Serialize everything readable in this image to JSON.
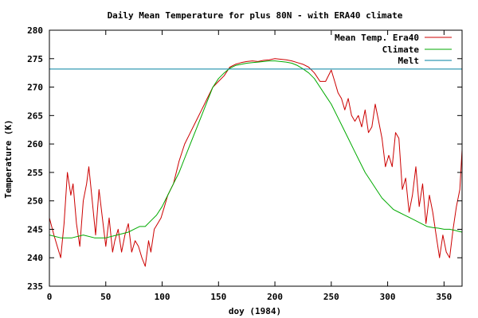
{
  "chart_data": {
    "type": "line",
    "title": "Daily Mean Temperature for plus 80N - with ERA40 climate",
    "xlabel": "doy (1984)",
    "ylabel": "Temperature (K)",
    "xlim": [
      0,
      366
    ],
    "ylim": [
      235,
      280
    ],
    "xticks": [
      0,
      50,
      100,
      150,
      200,
      250,
      300,
      350
    ],
    "yticks": [
      235,
      240,
      245,
      250,
      255,
      260,
      265,
      270,
      275,
      280
    ],
    "grid": false,
    "legend_position": "top-right",
    "series": [
      {
        "name": "Mean Temp. Era40",
        "color": "#cc0000",
        "x": [
          0,
          4,
          7,
          10,
          13,
          16,
          19,
          21,
          24,
          27,
          30,
          33,
          35,
          38,
          41,
          44,
          47,
          50,
          53,
          56,
          58,
          61,
          64,
          67,
          70,
          73,
          76,
          79,
          82,
          85,
          88,
          90,
          93,
          96,
          99,
          102,
          105,
          110,
          115,
          120,
          125,
          130,
          135,
          140,
          145,
          150,
          155,
          160,
          165,
          170,
          175,
          180,
          185,
          190,
          195,
          200,
          205,
          210,
          215,
          220,
          225,
          230,
          235,
          240,
          245,
          250,
          253,
          256,
          259,
          262,
          265,
          268,
          271,
          274,
          277,
          280,
          283,
          286,
          289,
          292,
          295,
          298,
          301,
          304,
          307,
          310,
          313,
          316,
          319,
          322,
          325,
          328,
          331,
          334,
          337,
          340,
          343,
          346,
          349,
          352,
          355,
          358,
          361,
          364,
          366
        ],
        "y": [
          247,
          244,
          242,
          240,
          246,
          255,
          251,
          253,
          246,
          242,
          250,
          253,
          256,
          250,
          244,
          252,
          247,
          242,
          247,
          241,
          243,
          245,
          241,
          244,
          246,
          241,
          243,
          242,
          240,
          238.5,
          243,
          241,
          245,
          246,
          247,
          249,
          251,
          253,
          257,
          260,
          262,
          264,
          266,
          268,
          270,
          271,
          272,
          273.5,
          274,
          274.3,
          274.5,
          274.6,
          274.5,
          274.7,
          274.8,
          275,
          274.9,
          274.8,
          274.6,
          274.3,
          274,
          273.5,
          272.5,
          271,
          271,
          273,
          271,
          269,
          268,
          266,
          268,
          265,
          264,
          265,
          263,
          266,
          262,
          263,
          267,
          264,
          261,
          256,
          258,
          256,
          262,
          261,
          252,
          254,
          248,
          251,
          256,
          249,
          253,
          246,
          251,
          248,
          244,
          240,
          244,
          241,
          240,
          245,
          249,
          252,
          259
        ]
      },
      {
        "name": "Climate",
        "color": "#00aa00",
        "x": [
          0,
          10,
          20,
          30,
          40,
          50,
          60,
          70,
          75,
          80,
          85,
          90,
          95,
          100,
          105,
          110,
          115,
          120,
          125,
          130,
          135,
          140,
          145,
          150,
          155,
          160,
          165,
          170,
          175,
          180,
          185,
          190,
          195,
          200,
          205,
          210,
          215,
          220,
          225,
          230,
          235,
          240,
          245,
          250,
          255,
          260,
          265,
          270,
          275,
          280,
          285,
          290,
          295,
          300,
          305,
          310,
          315,
          320,
          325,
          330,
          335,
          340,
          345,
          350,
          355,
          360,
          366
        ],
        "y": [
          244,
          243.5,
          243.5,
          244,
          243.5,
          243.5,
          244,
          244.5,
          245,
          245.5,
          245.5,
          246.5,
          247.5,
          249,
          251,
          253,
          255,
          257.5,
          260,
          262.5,
          265,
          267.5,
          270,
          271.5,
          272.5,
          273.3,
          273.8,
          274,
          274.2,
          274.3,
          274.4,
          274.5,
          274.6,
          274.6,
          274.5,
          274.4,
          274.2,
          273.8,
          273.2,
          272.5,
          271.5,
          270,
          268.5,
          267,
          265,
          263,
          261,
          259,
          257,
          255,
          253.5,
          252,
          250.5,
          249.5,
          248.5,
          248,
          247.5,
          247,
          246.5,
          246,
          245.5,
          245.3,
          245.2,
          245,
          245,
          244.8,
          244.5
        ]
      },
      {
        "name": "Melt",
        "color": "#0080a0",
        "x": [
          0,
          366
        ],
        "y": [
          273.16,
          273.16
        ]
      }
    ]
  }
}
